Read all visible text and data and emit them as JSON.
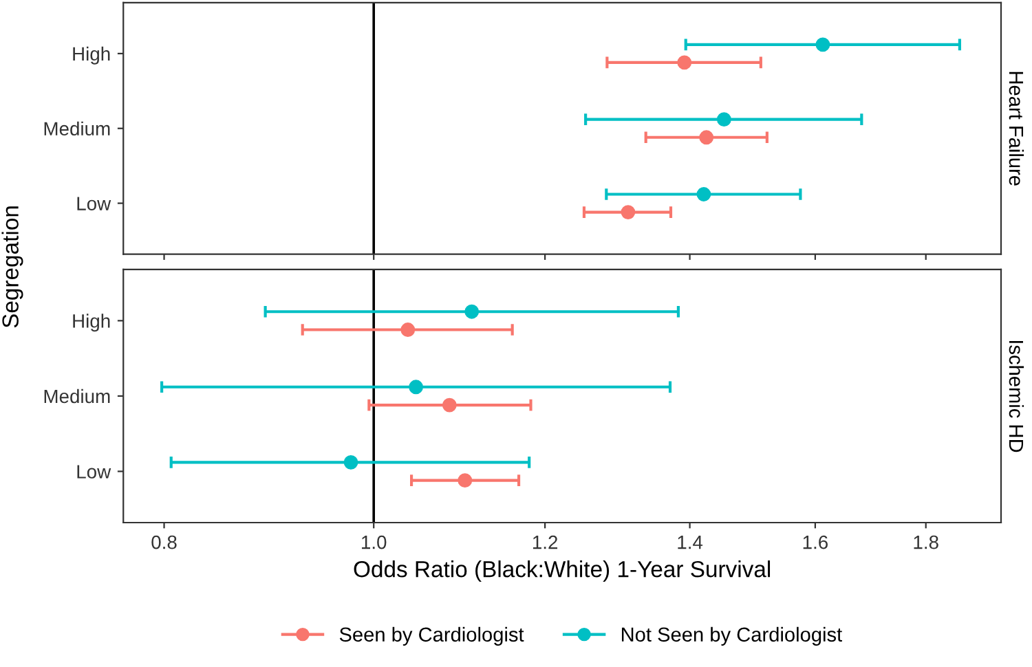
{
  "chart_data": [
    {
      "type": "scatter",
      "orientation": "horizontal",
      "title": "Heart Failure",
      "ylabel": "Segregation",
      "categories": [
        "High",
        "Medium",
        "Low"
      ],
      "log": "x",
      "xlim": [
        0.766,
        1.95
      ],
      "xticks": [
        0.8,
        1.0,
        1.2,
        1.4,
        1.6,
        1.8
      ],
      "tick_labels": "y",
      "grid": false,
      "marker": "circle",
      "legend": "bottom",
      "ref_lines": [
        {
          "axis": "x",
          "value": 1.0,
          "color": "#000000"
        }
      ],
      "series": [
        {
          "name": "Seen by Cardiologist",
          "color": "#f8766d",
          "values": [
            1.392,
            1.425,
            1.311
          ],
          "errors": [
            [
              1.282,
              1.51
            ],
            [
              1.336,
              1.52
            ],
            [
              1.251,
              1.372
            ]
          ]
        },
        {
          "name": "Not Seen by Cardiologist",
          "color": "#00bfc4",
          "values": [
            1.613,
            1.452,
            1.421
          ],
          "errors": [
            [
              1.394,
              1.866
            ],
            [
              1.253,
              1.681
            ],
            [
              1.281,
              1.575
            ]
          ]
        }
      ]
    },
    {
      "type": "scatter",
      "orientation": "horizontal",
      "title": "Ischemic HD",
      "xlabel": "Odds Ratio (Black:White) 1-Year Survival",
      "categories": [
        "High",
        "Medium",
        "Low"
      ],
      "log": "x",
      "xlim": [
        0.766,
        1.95
      ],
      "xticks": [
        0.8,
        {
          "value": 1.0,
          "label": "1.0"
        },
        1.2,
        1.4,
        1.6,
        1.8
      ],
      "grid": false,
      "marker": "circle",
      "legend": "bottom",
      "ref_lines": [
        {
          "axis": "x",
          "value": 1.0,
          "color": "#000000"
        }
      ],
      "series": [
        {
          "name": "Seen by Cardiologist",
          "color": "#f8766d",
          "values": [
            1.037,
            1.084,
            1.102
          ],
          "errors": [
            [
              0.927,
              1.159
            ],
            [
              0.995,
              1.182
            ],
            [
              1.041,
              1.167
            ]
          ]
        },
        {
          "name": "Not Seen by Cardiologist",
          "color": "#00bfc4",
          "values": [
            1.11,
            1.046,
            0.976
          ],
          "errors": [
            [
              0.891,
              1.383
            ],
            [
              0.798,
              1.371
            ],
            [
              0.806,
              1.18
            ]
          ]
        }
      ]
    }
  ]
}
